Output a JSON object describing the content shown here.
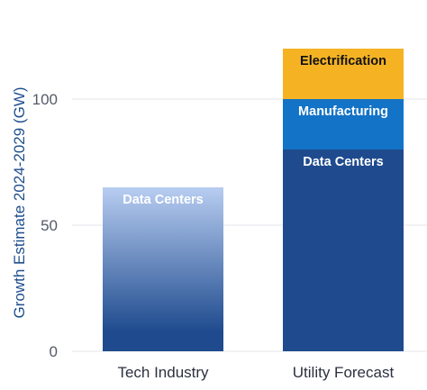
{
  "chart_data": {
    "type": "bar",
    "stacked": true,
    "categories": [
      "Tech Industry",
      "Utility Forecast"
    ],
    "ylabel": "Growth Estimate 2024-2029 (GW)",
    "xlabel": "",
    "ylim": [
      0,
      125
    ],
    "yticks": [
      0,
      50,
      100
    ],
    "grid": true,
    "bars": [
      {
        "category": "Tech Industry",
        "segments": [
          {
            "label": "Data Centers",
            "value": 65,
            "color": "#1f4b8e",
            "color_top": "#b8cdf1",
            "label_color": "#ffffff",
            "gradient": true
          }
        ]
      },
      {
        "category": "Utility Forecast",
        "segments": [
          {
            "label": "Data Centers",
            "value": 80,
            "color": "#1f4b8e",
            "label_color": "#ffffff"
          },
          {
            "label": "Manufacturing",
            "value": 20,
            "color": "#1373c6",
            "label_color": "#ffffff"
          },
          {
            "label": "Electrification",
            "value": 20,
            "color": "#f5b324",
            "label_color": "#111111"
          }
        ]
      }
    ]
  }
}
